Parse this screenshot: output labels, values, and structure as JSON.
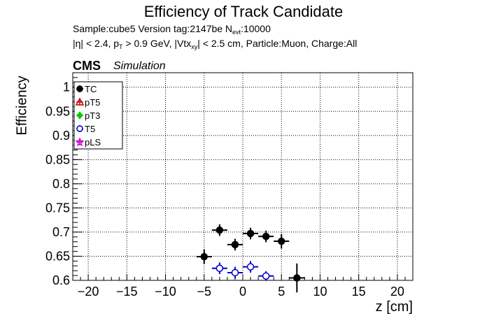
{
  "header": {
    "title": "Efficiency of Track Candidate",
    "sample_line": "Sample:cube5   Version tag:2147be  N",
    "sample_sub": "evt",
    "sample_tail": ":10000",
    "cuts_a": "|η| < 2.4, p",
    "cuts_sub_a": "T",
    "cuts_b": " > 0.9 GeV, |Vtx",
    "cuts_sub_b": "xy",
    "cuts_c": "| < 2.5 cm, Particle:Muon, Charge:All",
    "cms": "CMS",
    "simulation": "Simulation"
  },
  "chart_data": {
    "type": "scatter",
    "title": "Efficiency of Track Candidate",
    "xlabel": "z [cm]",
    "ylabel": "Efficiency",
    "xlim": [
      -22,
      22
    ],
    "ylim": [
      0.6,
      1.03
    ],
    "grid": true,
    "legend_position": "top-left",
    "x_ticks": [
      -20,
      -15,
      -10,
      -5,
      0,
      5,
      10,
      15,
      20
    ],
    "y_ticks": [
      0.6,
      0.65,
      0.7,
      0.75,
      0.8,
      0.85,
      0.9,
      0.95,
      1
    ],
    "series": [
      {
        "name": "TC",
        "color": "#000000",
        "marker": "filled-circle",
        "points": [
          {
            "x": -5,
            "y": 0.649,
            "xerr": 1,
            "yerr": 0.015
          },
          {
            "x": -3,
            "y": 0.704,
            "xerr": 1,
            "yerr": 0.012
          },
          {
            "x": -1,
            "y": 0.674,
            "xerr": 1,
            "yerr": 0.012
          },
          {
            "x": 1,
            "y": 0.697,
            "xerr": 1,
            "yerr": 0.012
          },
          {
            "x": 3,
            "y": 0.691,
            "xerr": 1,
            "yerr": 0.012
          },
          {
            "x": 5,
            "y": 0.681,
            "xerr": 1,
            "yerr": 0.015
          },
          {
            "x": 7,
            "y": 0.605,
            "xerr": 1,
            "yerr": 0.03
          }
        ]
      },
      {
        "name": "pT5",
        "color": "#cc0000",
        "marker": "open-triangle",
        "points": []
      },
      {
        "name": "pT3",
        "color": "#00cc00",
        "marker": "filled-diamond",
        "points": []
      },
      {
        "name": "T5",
        "color": "#0000cc",
        "marker": "open-circle",
        "points": [
          {
            "x": -3,
            "y": 0.625,
            "xerr": 1,
            "yerr": 0.012
          },
          {
            "x": -1,
            "y": 0.616,
            "xerr": 1,
            "yerr": 0.012
          },
          {
            "x": 1,
            "y": 0.628,
            "xerr": 1,
            "yerr": 0.012
          },
          {
            "x": 3,
            "y": 0.609,
            "xerr": 1,
            "yerr": 0.01
          }
        ]
      },
      {
        "name": "pLS",
        "color": "#cc00cc",
        "marker": "open-star",
        "points": []
      }
    ]
  }
}
